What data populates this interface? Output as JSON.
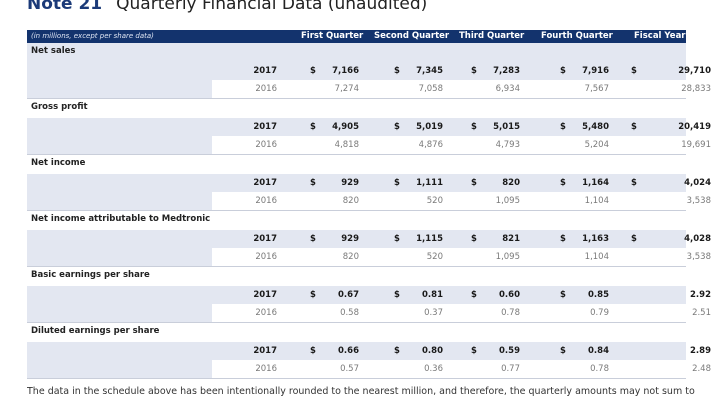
{
  "note": {
    "number": "Note 21",
    "title": "Quarterly Financial Data (unaudited)"
  },
  "table": {
    "units": "(in millions, except per share data)",
    "columns": [
      "First Quarter",
      "Second Quarter",
      "Third Quarter",
      "Fourth Quarter",
      "Fiscal Year"
    ],
    "sections": [
      {
        "label": "Net sales",
        "rows": [
          {
            "year": "2017",
            "dollar": [
              "$",
              "$",
              "$",
              "$",
              "$"
            ],
            "values": [
              "7,166",
              "7,345",
              "7,283",
              "7,916",
              "29,710"
            ]
          },
          {
            "year": "2016",
            "dollar": [
              "",
              "",
              "",
              "",
              ""
            ],
            "values": [
              "7,274",
              "7,058",
              "6,934",
              "7,567",
              "28,833"
            ]
          }
        ]
      },
      {
        "label": "Gross profit",
        "rows": [
          {
            "year": "2017",
            "dollar": [
              "$",
              "$",
              "$",
              "$",
              "$"
            ],
            "values": [
              "4,905",
              "5,019",
              "5,015",
              "5,480",
              "20,419"
            ]
          },
          {
            "year": "2016",
            "dollar": [
              "",
              "",
              "",
              "",
              ""
            ],
            "values": [
              "4,818",
              "4,876",
              "4,793",
              "5,204",
              "19,691"
            ]
          }
        ]
      },
      {
        "label": "Net income",
        "rows": [
          {
            "year": "2017",
            "dollar": [
              "$",
              "$",
              "$",
              "$",
              "$"
            ],
            "values": [
              "929",
              "1,111",
              "820",
              "1,164",
              "4,024"
            ]
          },
          {
            "year": "2016",
            "dollar": [
              "",
              "",
              "",
              "",
              ""
            ],
            "values": [
              "820",
              "520",
              "1,095",
              "1,104",
              "3,538"
            ]
          }
        ]
      },
      {
        "label": "Net income attributable to Medtronic",
        "rows": [
          {
            "year": "2017",
            "dollar": [
              "$",
              "$",
              "$",
              "$",
              "$"
            ],
            "values": [
              "929",
              "1,115",
              "821",
              "1,163",
              "4,028"
            ]
          },
          {
            "year": "2016",
            "dollar": [
              "",
              "",
              "",
              "",
              ""
            ],
            "values": [
              "820",
              "520",
              "1,095",
              "1,104",
              "3,538"
            ]
          }
        ]
      },
      {
        "label": "Basic earnings per share",
        "rows": [
          {
            "year": "2017",
            "dollar": [
              "$",
              "$",
              "$",
              "$",
              ""
            ],
            "values": [
              "0.67",
              "0.81",
              "0.60",
              "0.85",
              "2.92"
            ]
          },
          {
            "year": "2016",
            "dollar": [
              "",
              "",
              "",
              "",
              ""
            ],
            "values": [
              "0.58",
              "0.37",
              "0.78",
              "0.79",
              "2.51"
            ]
          }
        ]
      },
      {
        "label": "Diluted earnings per share",
        "rows": [
          {
            "year": "2017",
            "dollar": [
              "$",
              "$",
              "$",
              "$",
              ""
            ],
            "values": [
              "0.66",
              "0.80",
              "0.59",
              "0.84",
              "2.89"
            ]
          },
          {
            "year": "2016",
            "dollar": [
              "",
              "",
              "",
              "",
              ""
            ],
            "values": [
              "0.57",
              "0.36",
              "0.77",
              "0.78",
              "2.48"
            ]
          }
        ]
      }
    ]
  },
  "footnote": "The data in the schedule above has been intentionally rounded to the nearest million, and therefore, the quarterly amounts may not sum to the fiscal year totals.",
  "colors": {
    "header_bg": "#13336d",
    "band": "#e3e7f1",
    "title": "#1b3a78"
  }
}
